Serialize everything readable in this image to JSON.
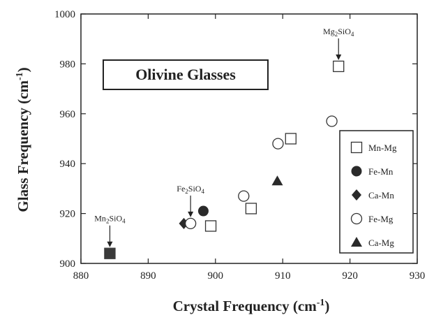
{
  "chart_data": {
    "type": "scatter",
    "title": "Olivine Glasses",
    "xlabel": "Crystal Frequency (cm-1)",
    "ylabel": "Glass Frequency (cm-1)",
    "xlim": [
      880,
      930
    ],
    "ylim": [
      900,
      1000
    ],
    "xticks": [
      880,
      890,
      900,
      910,
      920,
      930
    ],
    "yticks": [
      900,
      920,
      940,
      960,
      980,
      1000
    ],
    "legend_position": "right",
    "series": [
      {
        "name": "Mn-Mg",
        "marker": "square-open",
        "points": [
          [
            884.3,
            904
          ],
          [
            899.3,
            915
          ],
          [
            905.3,
            922
          ],
          [
            911.2,
            950
          ],
          [
            918.3,
            979
          ]
        ]
      },
      {
        "name": "Fe-Mn",
        "marker": "circle-filled",
        "points": [
          [
            884.3,
            904
          ],
          [
            898.2,
            921
          ]
        ]
      },
      {
        "name": "Ca-Mn",
        "marker": "diamond-filled",
        "points": [
          [
            884.3,
            904
          ],
          [
            895.3,
            916
          ]
        ]
      },
      {
        "name": "Fe-Mg",
        "marker": "circle-open",
        "points": [
          [
            896.3,
            916
          ],
          [
            904.2,
            927
          ],
          [
            909.3,
            948
          ],
          [
            917.3,
            957
          ]
        ]
      },
      {
        "name": "Ca-Mg",
        "marker": "triangle-filled",
        "points": [
          [
            909.2,
            933
          ]
        ]
      }
    ],
    "annotations": [
      {
        "base": "Mg",
        "sub1": "2",
        "rest": "SiO",
        "sub2": "4",
        "x": 918.3,
        "y": 979
      },
      {
        "base": "Fe",
        "sub1": "2",
        "rest": "SiO",
        "sub2": "4",
        "x": 896.3,
        "y": 916
      },
      {
        "base": "Mn",
        "sub1": "2",
        "rest": "SiO",
        "sub2": "4",
        "x": 884.3,
        "y": 904
      }
    ]
  }
}
